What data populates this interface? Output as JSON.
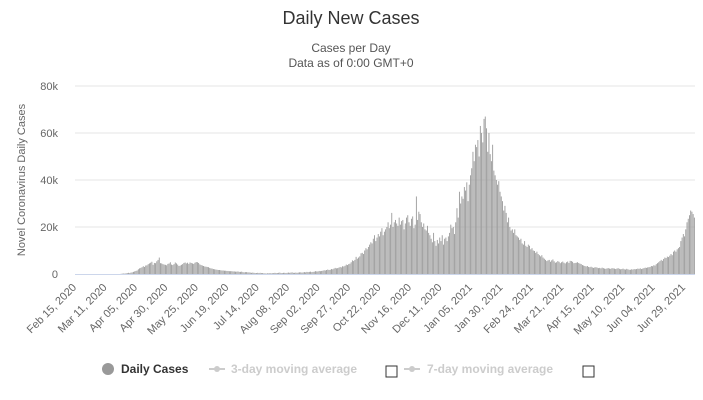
{
  "chart_data": {
    "type": "bar",
    "title": "Daily New Cases",
    "subtitle_lines": [
      "Cases per Day",
      "Data as of 0:00 GMT+0"
    ],
    "xlabel": "",
    "ylabel": "Novel Coronavirus Daily Cases",
    "ylim": [
      0,
      80000
    ],
    "y_ticks": [
      0,
      20000,
      40000,
      60000,
      80000
    ],
    "y_tick_labels": [
      "0",
      "20k",
      "40k",
      "60k",
      "80k"
    ],
    "x_ticks": [
      "Feb 15, 2020",
      "Mar 11, 2020",
      "Apr 05, 2020",
      "Apr 30, 2020",
      "May 25, 2020",
      "Jun 19, 2020",
      "Jul 14, 2020",
      "Aug 08, 2020",
      "Sep 02, 2020",
      "Sep 27, 2020",
      "Oct 22, 2020",
      "Nov 16, 2020",
      "Dec 11, 2020",
      "Jan 05, 2021",
      "Jan 30, 2021",
      "Feb 24, 2021",
      "Mar 21, 2021",
      "Apr 15, 2021",
      "May 10, 2021",
      "Jun 04, 2021",
      "Jun 29, 2021"
    ],
    "grid": true,
    "bar_color": "#999999",
    "series": [
      {
        "name": "Daily Cases",
        "values": [
          0,
          0,
          0,
          0,
          0,
          0,
          0,
          0,
          0,
          0,
          0,
          0,
          0,
          0,
          0,
          0,
          0,
          0,
          0,
          0,
          0,
          0,
          0,
          0,
          0,
          0,
          0,
          0,
          0,
          0,
          0,
          0,
          0,
          0,
          0,
          0,
          0,
          100,
          150,
          200,
          200,
          300,
          400,
          500,
          400,
          600,
          700,
          900,
          1100,
          1300,
          1500,
          2000,
          2400,
          2600,
          2900,
          3300,
          3000,
          3600,
          3700,
          4200,
          4500,
          4800,
          5200,
          3900,
          4700,
          4600,
          5400,
          6000,
          7000,
          4600,
          4500,
          4200,
          4000,
          3900,
          3700,
          4300,
          4500,
          5000,
          4000,
          3800,
          4200,
          4900,
          4500,
          4000,
          3400,
          3600,
          3900,
          4200,
          4700,
          4900,
          4500,
          4800,
          4300,
          4900,
          4700,
          4500,
          4300,
          4800,
          5100,
          5000,
          4700,
          4100,
          3800,
          3600,
          3400,
          3200,
          3100,
          3000,
          2900,
          2600,
          2400,
          2300,
          2100,
          2000,
          1900,
          1800,
          1700,
          1700,
          1600,
          1500,
          1500,
          1400,
          1400,
          1300,
          1300,
          1200,
          1200,
          1200,
          1100,
          1100,
          1000,
          1000,
          1100,
          900,
          900,
          1000,
          800,
          700,
          800,
          800,
          700,
          700,
          600,
          500,
          600,
          500,
          400,
          400,
          500,
          400,
          500,
          400,
          400,
          300,
          300,
          200,
          300,
          300,
          400,
          300,
          300,
          400,
          500,
          400,
          400,
          500,
          600,
          400,
          400,
          500,
          500,
          400,
          500,
          600,
          500,
          600,
          700,
          500,
          500,
          600,
          500,
          600,
          700,
          700,
          600,
          700,
          800,
          700,
          900,
          800,
          900,
          1000,
          800,
          900,
          1000,
          1200,
          1100,
          1100,
          1300,
          1200,
          1300,
          1400,
          1600,
          1500,
          1700,
          1900,
          1700,
          1800,
          2100,
          2000,
          2300,
          2600,
          2400,
          2500,
          2700,
          3000,
          2800,
          3300,
          3200,
          3500,
          4000,
          3800,
          4200,
          4400,
          5000,
          5800,
          5500,
          6000,
          7300,
          6500,
          7000,
          7500,
          8800,
          9000,
          8500,
          10000,
          11000,
          10500,
          11500,
          12500,
          13500,
          13000,
          15000,
          16500,
          14000,
          15500,
          17000,
          16000,
          18000,
          19500,
          16500,
          18000,
          19000,
          20000,
          22000,
          19500,
          21000,
          26000,
          20000,
          22000,
          23000,
          21500,
          20500,
          24000,
          21000,
          22500,
          23000,
          19000,
          21500,
          24000,
          25000,
          22000,
          20500,
          23500,
          24500,
          19500,
          21000,
          33000,
          23000,
          26500,
          25500,
          22000,
          20000,
          21500,
          19000,
          18500,
          20500,
          17500,
          16500,
          15000,
          13500,
          17500,
          14000,
          12000,
          14500,
          13000,
          15500,
          14000,
          16500,
          12500,
          15000,
          15500,
          14000,
          16000,
          17500,
          21000,
          19500,
          20000,
          17000,
          22000,
          28000,
          24000,
          35000,
          30000,
          33000,
          32000,
          37000,
          35500,
          39000,
          31000,
          38000,
          42000,
          45000,
          52000,
          48000,
          55000,
          54000,
          57000,
          50000,
          63000,
          60000,
          56000,
          66000,
          67000,
          62000,
          52000,
          60000,
          51000,
          48000,
          55000,
          44000,
          42000,
          40000,
          38000,
          39500,
          35000,
          33000,
          31000,
          27000,
          29000,
          26000,
          22000,
          24000,
          20000,
          18500,
          19000,
          17500,
          19000,
          16500,
          16000,
          15500,
          14500,
          15000,
          13000,
          12500,
          14000,
          12000,
          11500,
          12500,
          12000,
          10500,
          11000,
          10000,
          9800,
          9000,
          9500,
          8500,
          8000,
          7500,
          8000,
          7000,
          6500,
          6000,
          5500,
          5800,
          6000,
          5200,
          5800,
          6200,
          5400,
          4800,
          5000,
          5500,
          5200,
          4600,
          5000,
          5300,
          4800,
          4500,
          5000,
          5300,
          4700,
          5600,
          5500,
          5200,
          4600,
          4700,
          4800,
          5000,
          4700,
          4400,
          4200,
          3800,
          3600,
          3400,
          3200,
          3400,
          3000,
          2900,
          3100,
          2800,
          2600,
          2800,
          2900,
          2700,
          2500,
          2600,
          2400,
          2700,
          2500,
          2300,
          2200,
          2400,
          2500,
          2300,
          2200,
          2500,
          2400,
          2300,
          2100,
          2300,
          2500,
          2200,
          2000,
          2100,
          2300,
          2000,
          1900,
          2200,
          2000,
          1800,
          1800,
          2000,
          1900,
          2100,
          2000,
          2100,
          2300,
          2200,
          2400,
          2100,
          2300,
          2500,
          2700,
          2600,
          2800,
          2900,
          3000,
          3400,
          3300,
          3700,
          3600,
          4200,
          4600,
          5000,
          5500,
          6000,
          5600,
          6400,
          7000,
          6800,
          7400,
          7200,
          7800,
          8500,
          8000,
          9500,
          10000,
          9500,
          10500,
          11000,
          11500,
          14000,
          15500,
          17000,
          16000,
          19000,
          22000,
          23500,
          25000,
          27000,
          26500,
          25500,
          24000
        ]
      }
    ]
  },
  "legend": {
    "items": [
      {
        "label": "Daily Cases",
        "color": "#999999",
        "active": true
      },
      {
        "label": "3-day moving average",
        "color": "#cccccc",
        "active": false
      },
      {
        "label": "7-day moving average",
        "color": "#cccccc",
        "active": false
      }
    ]
  }
}
